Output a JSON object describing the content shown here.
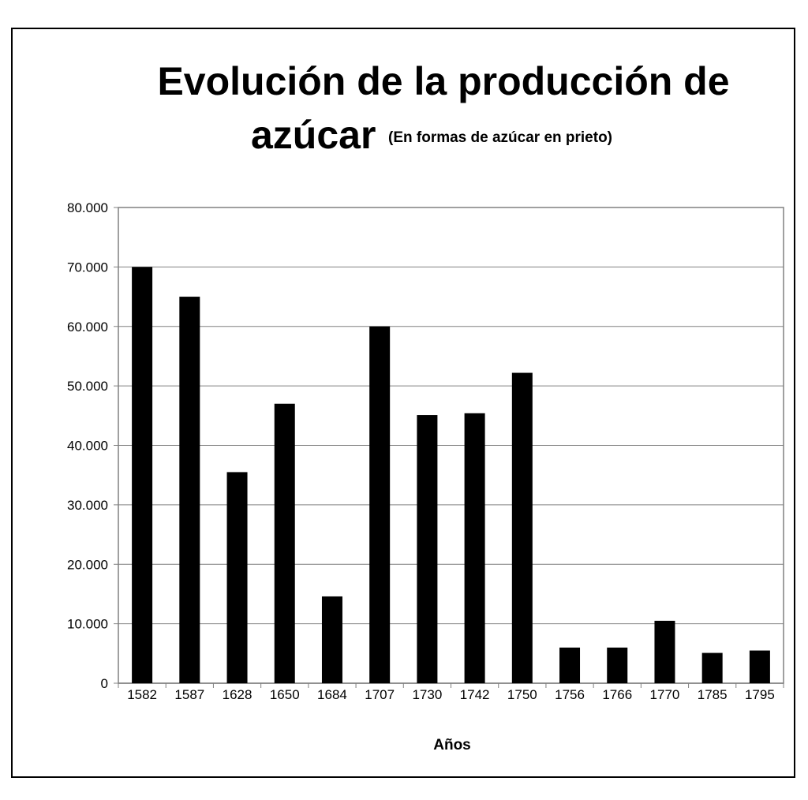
{
  "chart_data": {
    "type": "bar",
    "title": "Evolución de la producción de azúcar",
    "title_line1": "Evolución de la producción de",
    "title_line2": "azúcar",
    "subtitle": "(En formas de azúcar en prieto)",
    "xlabel": "Años",
    "ylabel": "",
    "categories": [
      "1582",
      "1587",
      "1628",
      "1650",
      "1684",
      "1707",
      "1730",
      "1742",
      "1750",
      "1756",
      "1766",
      "1770",
      "1785",
      "1795"
    ],
    "values": [
      70000,
      65000,
      35500,
      47000,
      14600,
      60000,
      45100,
      45400,
      52200,
      6000,
      6000,
      10500,
      5100,
      5500
    ],
    "ylim": [
      0,
      80000
    ],
    "yticks": [
      0,
      10000,
      20000,
      30000,
      40000,
      50000,
      60000,
      70000,
      80000
    ],
    "ytick_labels": [
      "0",
      "10.000",
      "20.000",
      "30.000",
      "40.000",
      "50.000",
      "60.000",
      "70.000",
      "80.000"
    ],
    "grid": true,
    "bar_color": "#000000"
  }
}
